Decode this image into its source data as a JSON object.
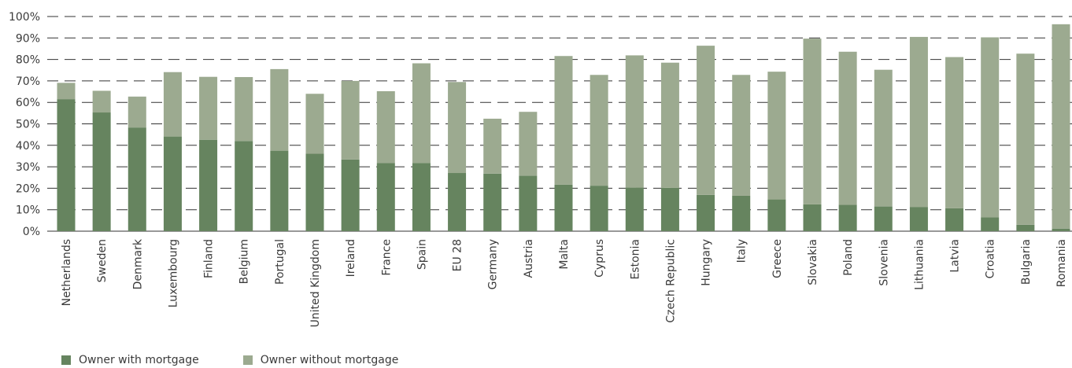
{
  "chart_data": {
    "type": "bar",
    "stacked": true,
    "categories": [
      "Netherlands",
      "Sweden",
      "Denmark",
      "Luxembourg",
      "Finland",
      "Belgium",
      "Portugal",
      "United Kingdom",
      "Ireland",
      "France",
      "Spain",
      "EU 28",
      "Germany",
      "Austria",
      "Malta",
      "Cyprus",
      "Estonia",
      "Czech Republic",
      "Hungary",
      "Italy",
      "Greece",
      "Slovakia",
      "Poland",
      "Slovenia",
      "Lithuania",
      "Latvia",
      "Croatia",
      "Bulgaria",
      "Romania"
    ],
    "series": [
      {
        "name": "Owner with mortgage",
        "color": "#66845f",
        "values": [
          61.5,
          55.3,
          48.3,
          44.1,
          42.6,
          42.0,
          37.5,
          36.1,
          33.4,
          31.8,
          31.7,
          27.1,
          26.8,
          25.8,
          21.7,
          21.2,
          20.3,
          20.2,
          16.9,
          16.5,
          14.8,
          12.5,
          12.3,
          11.5,
          11.3,
          10.7,
          6.4,
          3.0,
          1.2
        ]
      },
      {
        "name": "Owner without mortgage",
        "color": "#9caa90",
        "values": [
          7.6,
          10.1,
          14.4,
          30.0,
          29.3,
          29.8,
          38.0,
          27.9,
          36.6,
          33.4,
          46.5,
          42.4,
          25.6,
          29.8,
          59.9,
          51.6,
          61.6,
          58.3,
          69.5,
          56.3,
          59.5,
          77.2,
          71.3,
          63.7,
          79.2,
          70.4,
          83.9,
          79.7,
          95.2
        ]
      }
    ],
    "title": "",
    "xlabel": "",
    "ylabel": "",
    "ylim": [
      0,
      100
    ],
    "yticks": [
      "0%",
      "10%",
      "20%",
      "30%",
      "40%",
      "50%",
      "60%",
      "70%",
      "80%",
      "90%",
      "100%"
    ],
    "grid": "dashed-horizontal",
    "legend_position": "bottom-left"
  }
}
